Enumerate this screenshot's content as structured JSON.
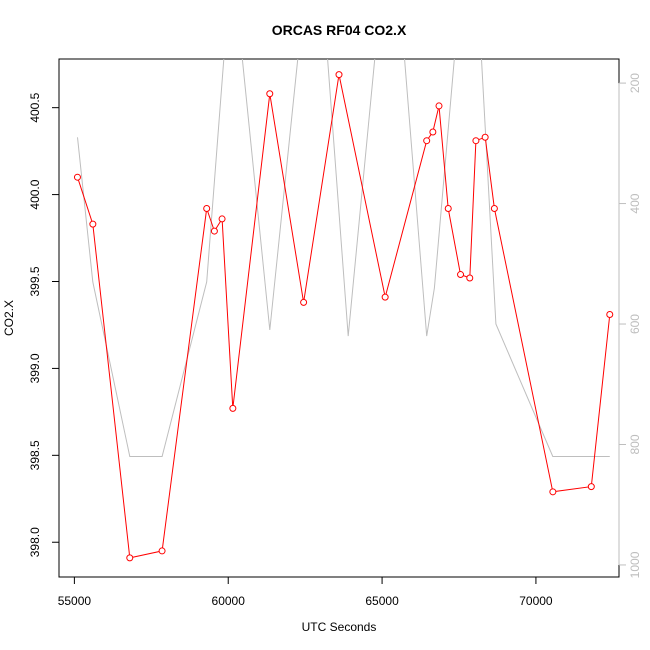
{
  "chart_data": {
    "type": "line",
    "title": "ORCAS RF04 CO2.X",
    "xlabel": "UTC Seconds",
    "ylabel": "CO2.X",
    "xlim": [
      54500,
      72700
    ],
    "ylim": [
      397.8,
      400.78
    ],
    "x_ticks": [
      55000,
      60000,
      65000,
      70000
    ],
    "x_tick_labels": [
      "55000",
      "60000",
      "65000",
      "70000"
    ],
    "y_ticks": [
      398.0,
      398.5,
      399.0,
      399.5,
      400.0,
      400.5
    ],
    "y_tick_labels": [
      "398.0",
      "398.5",
      "399.0",
      "399.5",
      "400.0",
      "400.5"
    ],
    "y2lim": [
      1020,
      160
    ],
    "y2_ticks": [
      200,
      400,
      600,
      800,
      1000
    ],
    "y2_tick_labels": [
      "200",
      "400",
      "600",
      "800",
      "1000"
    ],
    "grid": false,
    "series": [
      {
        "color": "#ff0000",
        "marker": "open-circle",
        "axis": "left",
        "x": [
          55100,
          55600,
          56800,
          57850,
          59300,
          59550,
          59800,
          60150,
          61350,
          62450,
          63600,
          65100,
          66450,
          66650,
          66850,
          67150,
          67550,
          67850,
          68050,
          68350,
          68650,
          70550,
          71800,
          72400
        ],
        "y": [
          400.1,
          399.83,
          397.91,
          397.95,
          399.92,
          399.79,
          399.86,
          398.77,
          400.58,
          399.38,
          400.69,
          399.41,
          400.31,
          400.36,
          400.51,
          399.92,
          399.54,
          399.52,
          400.31,
          400.33,
          399.92,
          398.29,
          398.32,
          399.31
        ]
      },
      {
        "color": "#bebebe",
        "marker": "none",
        "axis": "right",
        "x": [
          55100,
          55600,
          56800,
          57850,
          59300,
          59900,
          60400,
          61350,
          62300,
          63200,
          63900,
          64800,
          65700,
          66450,
          66700,
          67400,
          68200,
          68700,
          70550,
          71800,
          72400
        ],
        "y": [
          290,
          530,
          820,
          820,
          530,
          130,
          130,
          610,
          140,
          140,
          620,
          140,
          140,
          620,
          540,
          130,
          130,
          600,
          820,
          820,
          820
        ]
      }
    ]
  }
}
